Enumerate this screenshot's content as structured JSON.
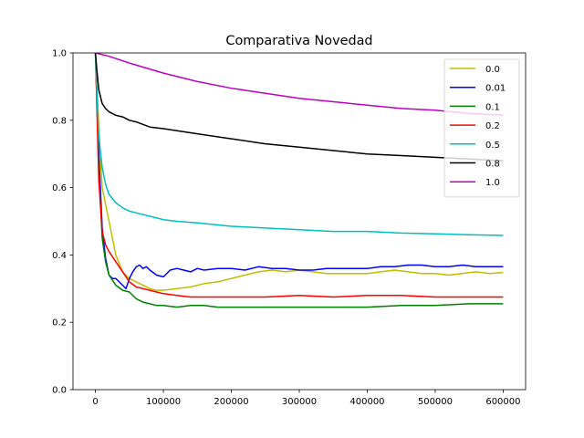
{
  "chart_data": {
    "type": "line",
    "title": "Comparativa Novedad",
    "xlabel": "",
    "ylabel": "",
    "xlim": [
      -33000,
      633000
    ],
    "ylim": [
      0.0,
      1.0
    ],
    "x_ticks": [
      0,
      100000,
      200000,
      300000,
      400000,
      500000,
      600000
    ],
    "x_tick_labels": [
      "0",
      "100000",
      "200000",
      "300000",
      "400000",
      "500000",
      "600000"
    ],
    "y_ticks": [
      0.0,
      0.2,
      0.4,
      0.6,
      0.8,
      1.0
    ],
    "y_tick_labels": [
      "0.0",
      "0.2",
      "0.4",
      "0.6",
      "0.8",
      "1.0"
    ],
    "grid": false,
    "legend_position": "top-right",
    "series": [
      {
        "name": "0.0",
        "color": "#bfbf00",
        "x": [
          0,
          5000,
          10000,
          20000,
          30000,
          40000,
          50000,
          60000,
          70000,
          80000,
          90000,
          100000,
          120000,
          140000,
          160000,
          180000,
          200000,
          220000,
          240000,
          260000,
          280000,
          300000,
          320000,
          340000,
          360000,
          380000,
          400000,
          420000,
          440000,
          460000,
          480000,
          500000,
          520000,
          540000,
          560000,
          580000,
          600000
        ],
        "y": [
          1.0,
          0.78,
          0.6,
          0.5,
          0.4,
          0.35,
          0.33,
          0.32,
          0.31,
          0.3,
          0.295,
          0.295,
          0.3,
          0.305,
          0.315,
          0.32,
          0.33,
          0.34,
          0.35,
          0.355,
          0.35,
          0.355,
          0.35,
          0.345,
          0.345,
          0.345,
          0.345,
          0.35,
          0.355,
          0.35,
          0.345,
          0.345,
          0.34,
          0.345,
          0.35,
          0.345,
          0.348
        ]
      },
      {
        "name": "0.01",
        "color": "#0000ff",
        "x": [
          0,
          5000,
          10000,
          15000,
          20000,
          25000,
          30000,
          35000,
          40000,
          45000,
          50000,
          55000,
          60000,
          65000,
          70000,
          75000,
          80000,
          90000,
          100000,
          110000,
          120000,
          130000,
          140000,
          150000,
          160000,
          180000,
          200000,
          220000,
          240000,
          260000,
          280000,
          300000,
          320000,
          340000,
          360000,
          380000,
          400000,
          420000,
          440000,
          460000,
          480000,
          500000,
          520000,
          540000,
          560000,
          580000,
          600000
        ],
        "y": [
          1.0,
          0.7,
          0.48,
          0.39,
          0.34,
          0.33,
          0.33,
          0.32,
          0.31,
          0.3,
          0.33,
          0.35,
          0.365,
          0.37,
          0.36,
          0.365,
          0.355,
          0.34,
          0.335,
          0.355,
          0.36,
          0.355,
          0.35,
          0.36,
          0.355,
          0.36,
          0.36,
          0.355,
          0.365,
          0.36,
          0.36,
          0.355,
          0.355,
          0.36,
          0.36,
          0.36,
          0.36,
          0.365,
          0.365,
          0.37,
          0.37,
          0.365,
          0.365,
          0.37,
          0.365,
          0.365,
          0.365
        ]
      },
      {
        "name": "0.1",
        "color": "#008000",
        "x": [
          0,
          5000,
          10000,
          15000,
          20000,
          30000,
          40000,
          50000,
          60000,
          70000,
          80000,
          90000,
          100000,
          120000,
          140000,
          160000,
          180000,
          200000,
          250000,
          300000,
          350000,
          400000,
          450000,
          500000,
          550000,
          600000
        ],
        "y": [
          1.0,
          0.65,
          0.45,
          0.38,
          0.34,
          0.31,
          0.295,
          0.29,
          0.27,
          0.26,
          0.255,
          0.25,
          0.25,
          0.245,
          0.25,
          0.25,
          0.245,
          0.245,
          0.245,
          0.245,
          0.245,
          0.245,
          0.25,
          0.25,
          0.255,
          0.255
        ]
      },
      {
        "name": "0.2",
        "color": "#ff0000",
        "x": [
          0,
          5000,
          10000,
          15000,
          20000,
          30000,
          40000,
          50000,
          60000,
          70000,
          80000,
          90000,
          100000,
          120000,
          140000,
          160000,
          180000,
          200000,
          250000,
          300000,
          350000,
          400000,
          450000,
          500000,
          550000,
          600000
        ],
        "y": [
          1.0,
          0.62,
          0.47,
          0.43,
          0.41,
          0.38,
          0.35,
          0.32,
          0.305,
          0.3,
          0.295,
          0.29,
          0.285,
          0.28,
          0.275,
          0.275,
          0.275,
          0.275,
          0.275,
          0.28,
          0.275,
          0.28,
          0.28,
          0.275,
          0.275,
          0.275
        ]
      },
      {
        "name": "0.5",
        "color": "#00bfbf",
        "x": [
          0,
          2000,
          5000,
          10000,
          15000,
          20000,
          30000,
          40000,
          50000,
          60000,
          80000,
          100000,
          120000,
          150000,
          200000,
          250000,
          300000,
          350000,
          400000,
          450000,
          500000,
          550000,
          600000
        ],
        "y": [
          1.0,
          0.88,
          0.75,
          0.66,
          0.61,
          0.58,
          0.555,
          0.54,
          0.53,
          0.525,
          0.515,
          0.505,
          0.5,
          0.495,
          0.485,
          0.48,
          0.475,
          0.47,
          0.47,
          0.465,
          0.463,
          0.46,
          0.458
        ]
      },
      {
        "name": "0.8",
        "color": "#000000",
        "x": [
          0,
          2000,
          5000,
          10000,
          15000,
          20000,
          30000,
          40000,
          50000,
          60000,
          80000,
          100000,
          150000,
          200000,
          250000,
          300000,
          350000,
          400000,
          450000,
          500000,
          550000,
          600000
        ],
        "y": [
          1.0,
          0.95,
          0.89,
          0.85,
          0.835,
          0.825,
          0.815,
          0.81,
          0.8,
          0.795,
          0.78,
          0.775,
          0.76,
          0.745,
          0.73,
          0.72,
          0.71,
          0.7,
          0.695,
          0.69,
          0.685,
          0.68
        ]
      },
      {
        "name": "1.0",
        "color": "#bf00bf",
        "x": [
          0,
          20000,
          50000,
          100000,
          150000,
          200000,
          250000,
          300000,
          350000,
          400000,
          450000,
          500000,
          550000,
          600000
        ],
        "y": [
          1.0,
          0.99,
          0.97,
          0.94,
          0.915,
          0.895,
          0.88,
          0.865,
          0.855,
          0.845,
          0.835,
          0.83,
          0.82,
          0.815
        ]
      }
    ]
  }
}
